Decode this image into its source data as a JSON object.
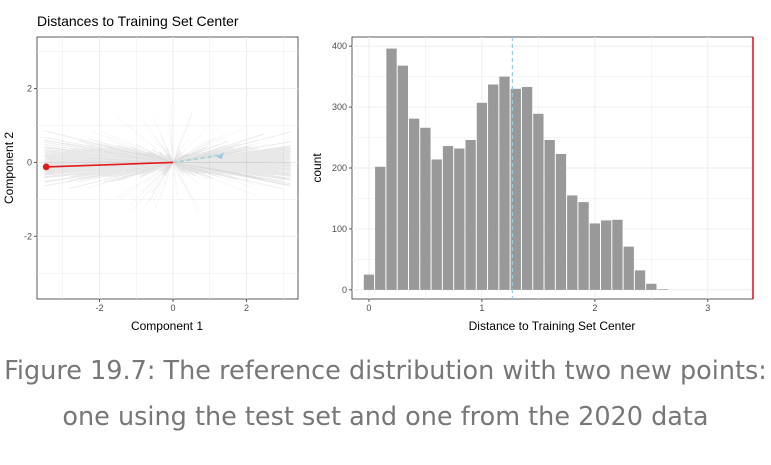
{
  "chart_data": [
    {
      "type": "scatter",
      "title": "Distances to Training Set Center",
      "xlabel": "Component 1",
      "ylabel": "Component 2",
      "xlim": [
        -3.7,
        3.4
      ],
      "ylim": [
        -3.7,
        3.4
      ],
      "xticks": [
        -2,
        0,
        2
      ],
      "yticks": [
        -2,
        0,
        2
      ],
      "grid": true,
      "center": {
        "x": 0,
        "y": 0
      },
      "points": [
        {
          "x": 1.3,
          "y": 0.2,
          "color": "#9ecae1"
        },
        {
          "x": -3.45,
          "y": -0.12,
          "color": "#e41a1c"
        }
      ]
    },
    {
      "type": "bar",
      "title": "",
      "xlabel": "Distance to Training Set Center",
      "ylabel": "count",
      "xlim": [
        -0.15,
        3.4
      ],
      "ylim": [
        -15,
        415
      ],
      "xticks": [
        0,
        1,
        2,
        3
      ],
      "yticks": [
        0,
        100,
        200,
        300,
        400
      ],
      "grid": true,
      "bin_width": 0.1,
      "bins_start": -0.05,
      "values": [
        25,
        202,
        396,
        368,
        281,
        266,
        214,
        236,
        232,
        246,
        307,
        337,
        350,
        330,
        333,
        289,
        246,
        223,
        155,
        144,
        109,
        114,
        115,
        71,
        32,
        10,
        1
      ],
      "vlines": [
        {
          "x": 1.27,
          "color": "#9ecae1",
          "style": "dashed"
        },
        {
          "x": 3.4,
          "color": "#e41a1c",
          "style": "solid"
        }
      ]
    }
  ],
  "caption": {
    "line1": "Figure 19.7: The reference distribution with two new points:",
    "line2": "one using the test set and one from the 2020 data"
  }
}
